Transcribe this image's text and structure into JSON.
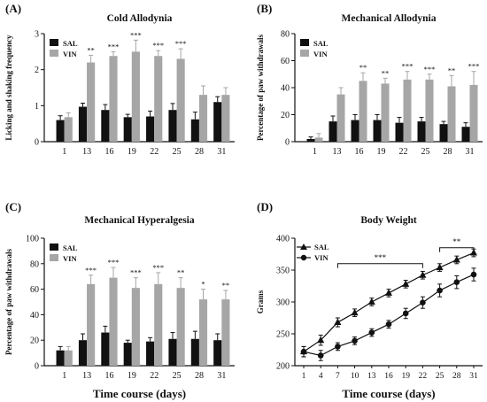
{
  "figure": {
    "xlabel_common": "Time course (days)"
  },
  "chart_data": [
    {
      "panel": "(A)",
      "type": "bar",
      "title": "Cold Allodynia",
      "ylabel": "Licking and shaking frequency",
      "xlabel": "",
      "ylim": [
        0,
        3
      ],
      "yticks": [
        0,
        1,
        2,
        3
      ],
      "categories": [
        "1",
        "13",
        "16",
        "19",
        "22",
        "25",
        "28",
        "31"
      ],
      "legend": [
        "SAL",
        "VIN"
      ],
      "legend_position": "top-left",
      "series": [
        {
          "name": "SAL",
          "color": "#111111",
          "values": [
            0.6,
            0.97,
            0.88,
            0.68,
            0.7,
            0.88,
            0.62,
            1.1
          ],
          "errors": [
            0.12,
            0.1,
            0.15,
            0.08,
            0.15,
            0.18,
            0.2,
            0.15
          ]
        },
        {
          "name": "VIN",
          "color": "#a6a6a6",
          "values": [
            0.68,
            2.2,
            2.38,
            2.5,
            2.38,
            2.3,
            1.3,
            1.3
          ],
          "errors": [
            0.12,
            0.2,
            0.12,
            0.32,
            0.15,
            0.28,
            0.25,
            0.2
          ]
        }
      ],
      "significance": [
        "",
        "**",
        "***",
        "***",
        "***",
        "***",
        "",
        ""
      ]
    },
    {
      "panel": "(B)",
      "type": "bar",
      "title": "Mechanical Allodynia",
      "ylabel": "Percentage of paw withdrawals",
      "xlabel": "",
      "ylim": [
        0,
        80
      ],
      "yticks": [
        0,
        20,
        40,
        60,
        80
      ],
      "categories": [
        "1",
        "13",
        "16",
        "19",
        "22",
        "25",
        "28",
        "31"
      ],
      "legend": [
        "SAL",
        "VIN"
      ],
      "legend_position": "top-left",
      "series": [
        {
          "name": "SAL",
          "color": "#111111",
          "values": [
            2,
            15,
            16,
            16,
            14,
            15,
            13,
            11
          ],
          "errors": [
            1.5,
            4,
            4,
            4,
            4,
            3,
            2,
            3
          ]
        },
        {
          "name": "VIN",
          "color": "#a6a6a6",
          "values": [
            3,
            35,
            45,
            43,
            46,
            46,
            41,
            42
          ],
          "errors": [
            3,
            5,
            6,
            4,
            6,
            4,
            8,
            10
          ]
        }
      ],
      "significance": [
        "",
        "",
        "**",
        "**",
        "***",
        "***",
        "**",
        "***"
      ]
    },
    {
      "panel": "(C)",
      "type": "bar",
      "title": "Mechanical Hyperalgesia",
      "ylabel": "Percentage of paw withdrawals",
      "xlabel": "Time course (days)",
      "ylim": [
        0,
        100
      ],
      "yticks": [
        0,
        20,
        40,
        60,
        80,
        100
      ],
      "categories": [
        "1",
        "13",
        "16",
        "19",
        "22",
        "25",
        "28",
        "31"
      ],
      "legend": [
        "SAL",
        "VIN"
      ],
      "legend_position": "top-left",
      "series": [
        {
          "name": "SAL",
          "color": "#111111",
          "values": [
            12,
            20,
            26,
            18,
            19,
            21,
            21,
            20
          ],
          "errors": [
            3,
            5,
            5,
            2,
            3,
            5,
            6,
            5
          ]
        },
        {
          "name": "VIN",
          "color": "#a6a6a6",
          "values": [
            12,
            64,
            69,
            61,
            64,
            61,
            52,
            52
          ],
          "errors": [
            3,
            7,
            8,
            8,
            9,
            8,
            8,
            7
          ]
        }
      ],
      "significance": [
        "",
        "***",
        "***",
        "***",
        "***",
        "**",
        "*",
        "**"
      ]
    },
    {
      "panel": "(D)",
      "type": "line",
      "title": "Body Weight",
      "ylabel": "Grams",
      "xlabel": "Time course (days)",
      "ylim": [
        200,
        400
      ],
      "yticks": [
        200,
        250,
        300,
        350,
        400
      ],
      "x": [
        1,
        4,
        7,
        10,
        13,
        16,
        19,
        22,
        25,
        28,
        31
      ],
      "xtick_labels": [
        "1",
        "4",
        "7",
        "10",
        "13",
        "16",
        "19",
        "22",
        "25",
        "28",
        "31"
      ],
      "legend": [
        "SAL",
        "VIN"
      ],
      "legend_position": "top-left",
      "series": [
        {
          "name": "SAL",
          "marker": "triangle",
          "values": [
            222,
            240,
            268,
            283,
            300,
            314,
            328,
            342,
            354,
            366,
            377
          ],
          "errors": [
            8,
            8,
            7,
            6,
            6,
            6,
            6,
            6,
            6,
            6,
            6
          ]
        },
        {
          "name": "VIN",
          "marker": "circle",
          "values": [
            222,
            216,
            230,
            239,
            252,
            265,
            282,
            299,
            318,
            331,
            343
          ],
          "errors": [
            8,
            8,
            6,
            6,
            6,
            6,
            8,
            9,
            10,
            10,
            10
          ]
        }
      ],
      "brackets": [
        {
          "from": 7,
          "to": 22,
          "label": "***"
        },
        {
          "from": 25,
          "to": 31,
          "label": "**"
        }
      ]
    }
  ]
}
